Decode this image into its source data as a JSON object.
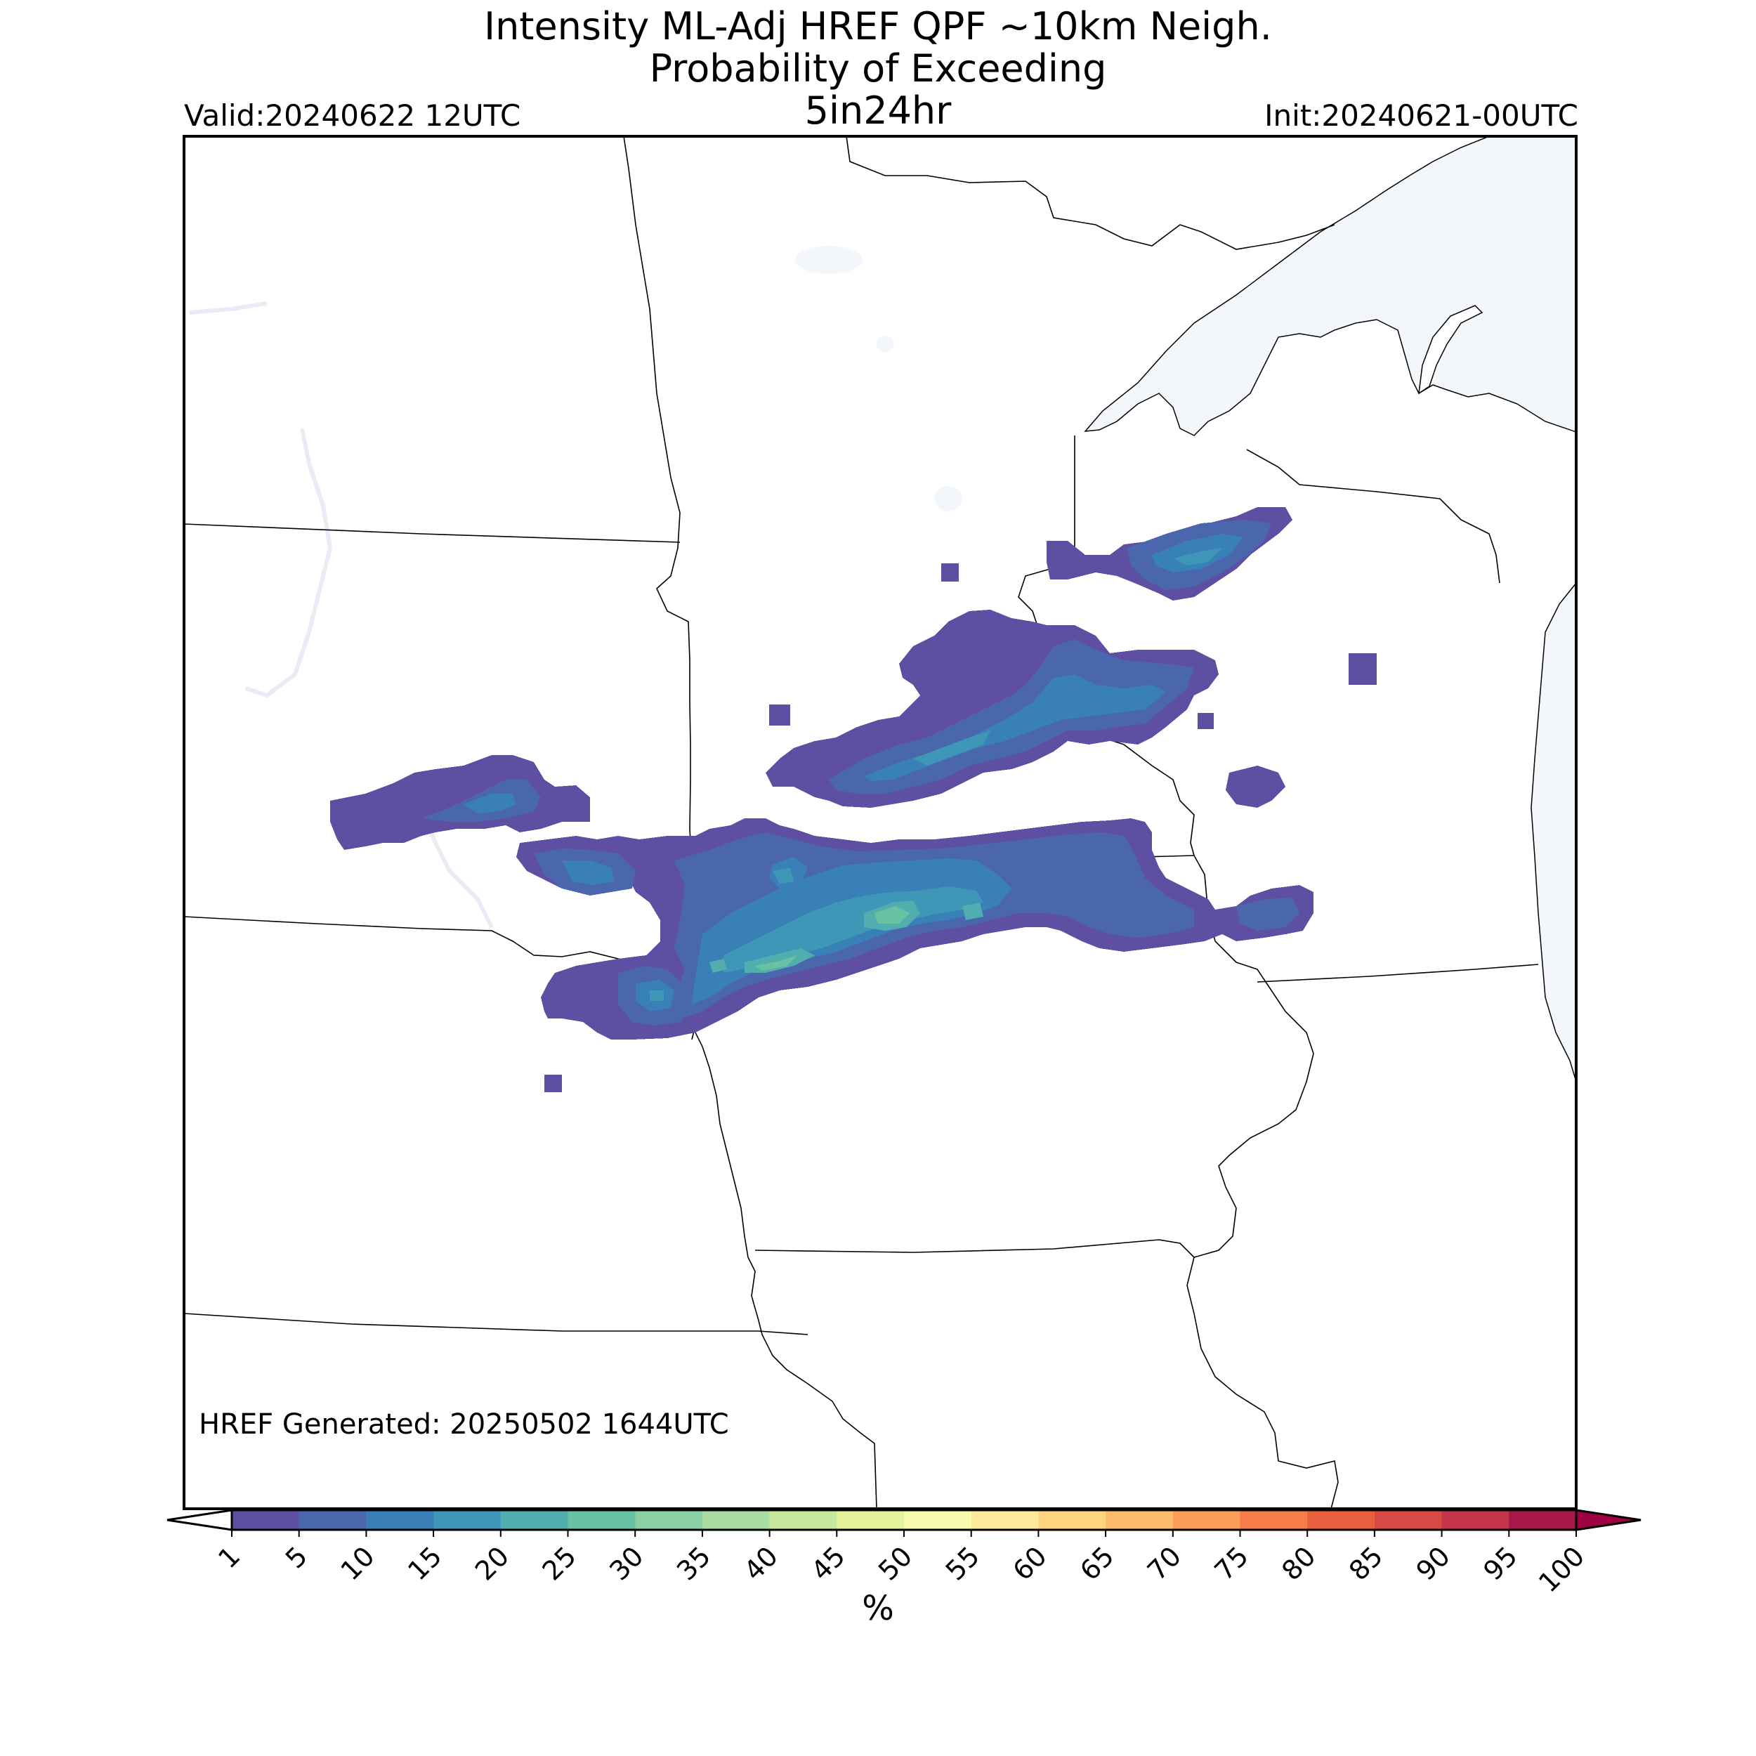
{
  "title": {
    "line1": "Intensity ML-Adj HREF QPF ~10km Neigh.",
    "line2": "Probability of Exceeding",
    "line3": "5in24hr"
  },
  "valid_text": "Valid:20240622 12UTC",
  "init_text": "Init:20240621-00UTC",
  "generated_text": "HREF Generated: 20250502 1644UTC",
  "colorbar": {
    "unit": "%",
    "ticks": [
      "1",
      "5",
      "10",
      "15",
      "20",
      "25",
      "30",
      "35",
      "40",
      "45",
      "50",
      "55",
      "60",
      "65",
      "70",
      "75",
      "80",
      "85",
      "90",
      "95",
      "100"
    ],
    "colors": [
      "#5e4fa2",
      "#4a67ad",
      "#3a80b8",
      "#3f97b7",
      "#52aeae",
      "#69c1a4",
      "#89d0a4",
      "#a9dda2",
      "#c6e89f",
      "#e2f39c",
      "#f7fbad",
      "#fee99a",
      "#fed480",
      "#fdbc6b",
      "#fb9d59",
      "#f67d4a",
      "#e9603f",
      "#d84a45",
      "#c5364b",
      "#a8174a"
    ],
    "extend_low": "#ffffff",
    "extend_high": "#9e0142"
  },
  "map": {
    "water_color": "#f3f7fc",
    "border_color": "#000000"
  }
}
